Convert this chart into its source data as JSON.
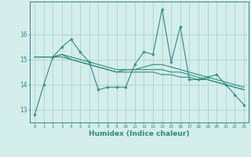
{
  "x": [
    0,
    1,
    2,
    3,
    4,
    5,
    6,
    7,
    8,
    9,
    10,
    11,
    12,
    13,
    14,
    15,
    16,
    17,
    18,
    19,
    20,
    21,
    22,
    23
  ],
  "line1": [
    12.8,
    14.0,
    15.1,
    15.5,
    15.8,
    15.3,
    14.9,
    13.8,
    13.9,
    13.9,
    13.9,
    14.8,
    15.3,
    15.2,
    17.0,
    14.9,
    16.3,
    14.2,
    14.2,
    14.3,
    14.4,
    14.0,
    13.6,
    13.2
  ],
  "line2": [
    15.1,
    15.1,
    15.1,
    15.1,
    15.0,
    14.9,
    14.8,
    14.7,
    14.6,
    14.5,
    14.5,
    14.5,
    14.5,
    14.5,
    14.4,
    14.4,
    14.3,
    14.3,
    14.2,
    14.2,
    14.1,
    14.0,
    13.9,
    13.8
  ],
  "line3": [
    15.1,
    15.1,
    15.1,
    15.2,
    15.1,
    15.0,
    14.9,
    14.8,
    14.7,
    14.6,
    14.6,
    14.6,
    14.6,
    14.6,
    14.6,
    14.5,
    14.5,
    14.4,
    14.3,
    14.2,
    14.1,
    14.0,
    13.9,
    13.8
  ],
  "line4": [
    15.1,
    15.1,
    15.1,
    15.2,
    15.0,
    14.9,
    14.8,
    14.7,
    14.6,
    14.5,
    14.6,
    14.6,
    14.7,
    14.8,
    14.8,
    14.7,
    14.6,
    14.5,
    14.4,
    14.3,
    14.2,
    14.1,
    14.0,
    13.9
  ],
  "color": "#2e8b7a",
  "bg_color": "#d4eeec",
  "grid_color": "#a0ccc8",
  "xlabel": "Humidex (Indice chaleur)",
  "yticks": [
    13,
    14,
    15,
    16
  ],
  "xticks": [
    0,
    1,
    2,
    3,
    4,
    5,
    6,
    7,
    8,
    9,
    10,
    11,
    12,
    13,
    14,
    15,
    16,
    17,
    18,
    19,
    20,
    21,
    22,
    23
  ],
  "ylim": [
    12.5,
    17.3
  ],
  "xlim": [
    -0.5,
    23.5
  ]
}
